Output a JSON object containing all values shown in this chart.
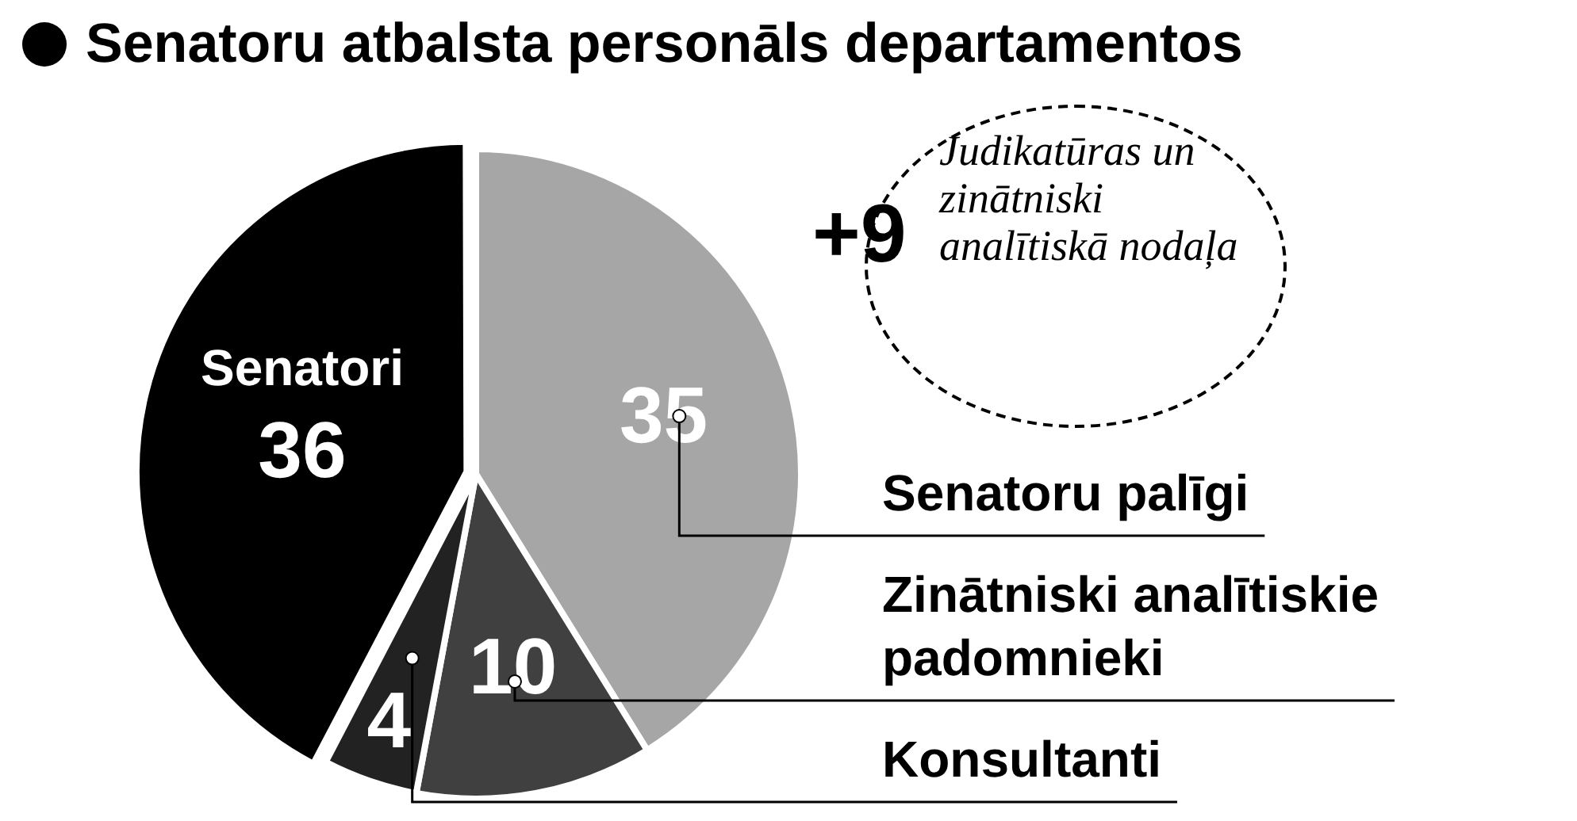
{
  "chart_data": {
    "type": "pie",
    "title": "Senatoru atbalsta personāls departamentos",
    "categories": [
      "Senatoru palīgi",
      "Zinātniski analītiskie padomnieki",
      "Konsultanti",
      "Senatori"
    ],
    "values": [
      35,
      10,
      4,
      36
    ],
    "colors": [
      "#a6a6a6",
      "#404040",
      "#222222",
      "#000000"
    ],
    "data_labels": true,
    "annotations": [
      "+9",
      "Judikatūras un zinātniski analītiskā nodaļa"
    ]
  }
}
